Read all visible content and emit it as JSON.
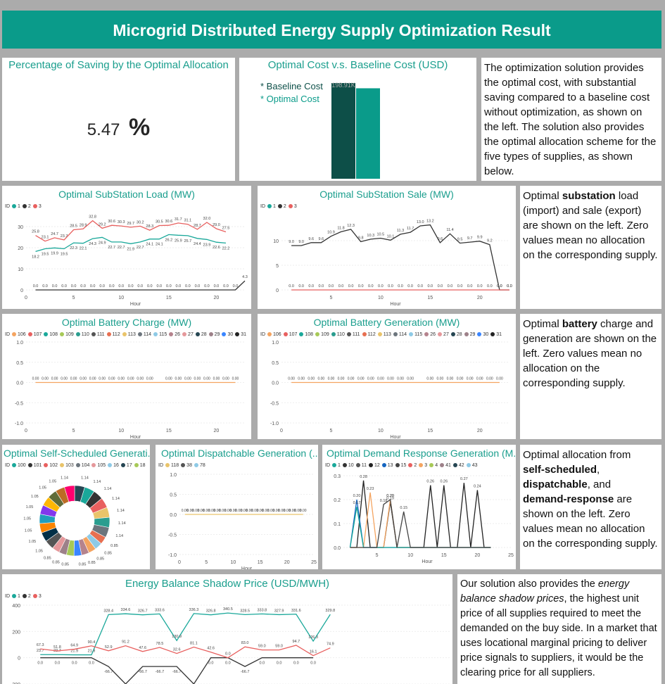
{
  "header": {
    "title": "Microgrid Distributed Energy Supply Optimization Result",
    "accent": "#0a9b8a"
  },
  "saving": {
    "title": "Percentage of Saving by the Optimal Allocation",
    "value": "5.47",
    "unit": "%"
  },
  "cost": {
    "title": "Optimal Cost v.s. Baseline Cost (USD)",
    "legend": [
      "* Baseline Cost",
      "* Optimal Cost"
    ],
    "bar_label": "198.91K",
    "chart_data": {
      "type": "bar",
      "categories": [
        "Baseline Cost",
        "Optimal Cost"
      ],
      "values": [
        198.91,
        188.03
      ],
      "colors": [
        "#0d4f48",
        "#0a9b8a"
      ]
    }
  },
  "note1": {
    "text": "The optimization solution provides the optimal cost, with substantial saving compared to a baseline cost without optimization, as shown on the left. The solution also provides the optimal allocation scheme for the five types of supplies, as shown below."
  },
  "note2": {
    "pre": "Optimal ",
    "bold": "substation",
    "post": " load (import) and sale (export) are shown on the left. Zero values mean no allocation on the corresponding supply."
  },
  "note3": {
    "pre": "Optimal ",
    "bold": "battery",
    "post": " charge and generation are shown on the left. Zero values mean no allocation on the corresponding supply."
  },
  "note4": {
    "l1": "Optimal allocation from",
    "b1": "self-scheduled",
    "b2": "dispatchable",
    "t2": ", and",
    "b3": "demand-response",
    "t3": " are shown on the left. Zero values mean no allocation on the corresponding supply."
  },
  "note5": {
    "t1": "Our solution also provides the ",
    "i1": "energy balance shadow prices",
    "t2": ", the highest unit price of all supplies required to meet the demanded on the buy side. In a market that uses locational marginal pricing to deliver price signals to suppliers, it would be the clearing price for all suppliers."
  },
  "load": {
    "title": "Optimal SubStation Load (MW)",
    "legend_id": "ID",
    "legend": [
      {
        "n": "1",
        "c": "#1aa89a"
      },
      {
        "n": "2",
        "c": "#333333"
      },
      {
        "n": "3",
        "c": "#e8605f"
      }
    ],
    "xlabel": "Hour",
    "yticks": [
      "30",
      "20",
      "10",
      "0"
    ],
    "xticks": [
      "0",
      "5",
      "10",
      "15",
      "20"
    ],
    "chart_data": {
      "type": "line",
      "x": [
        1,
        2,
        3,
        4,
        5,
        6,
        7,
        8,
        9,
        10,
        11,
        12,
        13,
        14,
        15,
        16,
        17,
        18,
        19,
        20,
        21,
        22,
        23
      ],
      "ylim": [
        0,
        35
      ],
      "series": [
        {
          "name": "1",
          "values": [
            18.2,
            19.5,
            19.9,
            19.5,
            22.3,
            22.1,
            24.3,
            24.9,
            22.7,
            22.7,
            21.9,
            22.7,
            24.1,
            24.1,
            26.2,
            25.9,
            25.7,
            24.4,
            23.9,
            22.6,
            22.2,
            null,
            null
          ]
        },
        {
          "name": "2",
          "values": [
            0,
            0,
            0,
            0,
            0,
            0,
            0,
            0,
            0,
            0,
            0,
            0,
            0,
            0,
            0,
            0,
            0,
            0,
            0,
            0,
            0,
            0,
            4.3
          ]
        },
        {
          "name": "3",
          "values": [
            25.8,
            23.1,
            24.7,
            23.7,
            28.5,
            28.9,
            32.8,
            29.2,
            30.6,
            30.3,
            29.7,
            30.2,
            28.3,
            30.5,
            30.6,
            31.7,
            31.1,
            28.7,
            32.0,
            29.0,
            27.5,
            null,
            null
          ]
        }
      ]
    }
  },
  "sale": {
    "title": "Optimal SubStation Sale (MW)",
    "legend_id": "ID",
    "legend": [
      {
        "n": "1",
        "c": "#1aa89a"
      },
      {
        "n": "2",
        "c": "#333333"
      },
      {
        "n": "3",
        "c": "#e8605f"
      }
    ],
    "xlabel": "Hour",
    "yticks": [
      "10",
      "5",
      "0"
    ],
    "xticks": [
      "5",
      "10",
      "15",
      "20"
    ],
    "chart_data": {
      "type": "line",
      "x": [
        1,
        2,
        3,
        4,
        5,
        6,
        7,
        8,
        9,
        10,
        11,
        12,
        13,
        14,
        15,
        16,
        17,
        18,
        19,
        20,
        21,
        22,
        23
      ],
      "ylim": [
        0,
        15
      ],
      "series": [
        {
          "name": "2",
          "values": [
            9.0,
            9.0,
            9.6,
            9.6,
            10.9,
            11.8,
            12.3,
            9.8,
            10.3,
            10.5,
            10.1,
            11.3,
            11.7,
            13.0,
            13.2,
            9.6,
            11.4,
            9.5,
            9.7,
            9.9,
            9.2,
            0,
            0
          ]
        },
        {
          "name": "3",
          "values": [
            0,
            0,
            0,
            0,
            0,
            0,
            0,
            0,
            0,
            0,
            0,
            0,
            0,
            0,
            0,
            0,
            0,
            0,
            0,
            0,
            0,
            0,
            0
          ]
        }
      ]
    }
  },
  "bcharge": {
    "title": "Optimal Battery Charge (MW)",
    "legend_id": "ID",
    "legend": [
      {
        "n": "106",
        "c": "#f4a460"
      },
      {
        "n": "107",
        "c": "#e8605f"
      },
      {
        "n": "108",
        "c": "#1aa89a"
      },
      {
        "n": "109",
        "c": "#a7c957"
      },
      {
        "n": "110",
        "c": "#2a9d8f"
      },
      {
        "n": "111",
        "c": "#555555"
      },
      {
        "n": "112",
        "c": "#e76f51"
      },
      {
        "n": "113",
        "c": "#e9c46a"
      },
      {
        "n": "114",
        "c": "#6c757d"
      },
      {
        "n": "115",
        "c": "#8ecae6"
      },
      {
        "n": "26",
        "c": "#b5838d"
      },
      {
        "n": "27",
        "c": "#e5989b"
      },
      {
        "n": "28",
        "c": "#264653"
      },
      {
        "n": "29",
        "c": "#9d8189"
      },
      {
        "n": "30",
        "c": "#3a86ff"
      },
      {
        "n": "31",
        "c": "#222222"
      }
    ],
    "xlabel": "Hour",
    "yticks": [
      "1.0",
      "0.5",
      "0.0",
      "-0.5",
      "-1.0"
    ],
    "xticks": [
      "0",
      "5",
      "10",
      "15",
      "20"
    ],
    "point_label": "0.00",
    "chart_data": {
      "type": "line",
      "x": [
        1,
        2,
        3,
        4,
        5,
        6,
        7,
        8,
        9,
        10,
        11,
        12,
        13,
        15,
        16,
        17,
        18,
        19,
        20,
        21,
        22
      ],
      "ylim": [
        -1,
        1
      ],
      "series": [
        {
          "name": "106",
          "values": [
            0,
            0,
            0,
            0,
            0,
            0,
            0,
            0,
            0,
            0,
            0,
            0,
            0,
            0,
            0,
            0,
            0,
            0,
            0,
            0,
            0
          ]
        }
      ]
    }
  },
  "bgen": {
    "title": "Optimal Battery Generation (MW)",
    "legend_id": "ID",
    "legend": [
      {
        "n": "106",
        "c": "#f4a460"
      },
      {
        "n": "107",
        "c": "#e8605f"
      },
      {
        "n": "108",
        "c": "#1aa89a"
      },
      {
        "n": "109",
        "c": "#a7c957"
      },
      {
        "n": "110",
        "c": "#2a9d8f"
      },
      {
        "n": "111",
        "c": "#555555"
      },
      {
        "n": "112",
        "c": "#e76f51"
      },
      {
        "n": "113",
        "c": "#e9c46a"
      },
      {
        "n": "114",
        "c": "#6c757d"
      },
      {
        "n": "115",
        "c": "#8ecae6"
      },
      {
        "n": "26",
        "c": "#b5838d"
      },
      {
        "n": "27",
        "c": "#e5989b"
      },
      {
        "n": "28",
        "c": "#264653"
      },
      {
        "n": "29",
        "c": "#9d8189"
      },
      {
        "n": "30",
        "c": "#3a86ff"
      },
      {
        "n": "31",
        "c": "#222222"
      }
    ],
    "xlabel": "Hour",
    "yticks": [
      "1.0",
      "0.5",
      "0.0",
      "-0.5",
      "-1.0"
    ],
    "xticks": [
      "0",
      "5",
      "10",
      "15",
      "20"
    ],
    "point_label": "0.00",
    "chart_data": {
      "type": "line",
      "x": [
        1,
        2,
        3,
        4,
        5,
        6,
        7,
        8,
        9,
        10,
        11,
        12,
        13,
        15,
        16,
        17,
        18,
        19,
        20,
        21,
        22
      ],
      "ylim": [
        -1,
        1
      ],
      "series": [
        {
          "name": "106",
          "values": [
            0,
            0,
            0,
            0,
            0,
            0,
            0,
            0,
            0,
            0,
            0,
            0,
            0,
            0,
            0,
            0,
            0,
            0,
            0,
            0,
            0
          ]
        }
      ]
    }
  },
  "selfsched": {
    "title": "Optimal Self-Scheduled Generati...",
    "legend_id": "ID",
    "legend": [
      {
        "n": "100",
        "c": "#1aa89a"
      },
      {
        "n": "101",
        "c": "#333333"
      },
      {
        "n": "102",
        "c": "#e8605f"
      },
      {
        "n": "103",
        "c": "#e9c46a"
      },
      {
        "n": "104",
        "c": "#6c757d"
      },
      {
        "n": "105",
        "c": "#e5989b"
      },
      {
        "n": "16",
        "c": "#8ecae6"
      },
      {
        "n": "17",
        "c": "#264653"
      },
      {
        "n": "18",
        "c": "#a7c957"
      }
    ],
    "chart_data": {
      "type": "pie",
      "labels": [
        "1.14",
        "1.14",
        "1.14",
        "1.14",
        "1.14",
        "1.14",
        "1.14",
        "0.85",
        "0.85",
        "0.85",
        "0.85",
        "0.85",
        "0.85",
        "0.85",
        "0.85",
        "1.05",
        "1.05",
        "1.05",
        "1.05",
        "1.05",
        "1.05",
        "1.05",
        "1.05",
        "1.14"
      ],
      "values": [
        1.14,
        1.14,
        1.14,
        1.14,
        1.14,
        1.14,
        1.14,
        0.85,
        0.85,
        0.85,
        0.85,
        0.85,
        0.85,
        0.85,
        0.85,
        1.05,
        1.05,
        1.05,
        1.05,
        1.05,
        1.05,
        1.05,
        1.05,
        1.14
      ],
      "colors": [
        "#264653",
        "#1aa89a",
        "#333333",
        "#e8605f",
        "#e9c46a",
        "#2a9d8f",
        "#6c757d",
        "#e76f51",
        "#8ecae6",
        "#f4a460",
        "#b5838d",
        "#3a86ff",
        "#a7c957",
        "#9d8189",
        "#e5989b",
        "#555555",
        "#023047",
        "#fb8500",
        "#219ebc",
        "#8338ec",
        "#ffb703",
        "#606c38",
        "#bc6c25",
        "#ff006e"
      ]
    }
  },
  "dispatch": {
    "title": "Optimal Dispatchable Generation (...",
    "legend_id": "ID",
    "legend": [
      {
        "n": "118",
        "c": "#e9c46a"
      },
      {
        "n": "38",
        "c": "#555555"
      },
      {
        "n": "78",
        "c": "#8ecae6"
      }
    ],
    "xlabel": "Hour",
    "yticks": [
      "1.0",
      "0.5",
      "0.0",
      "-0.5",
      "-1.0"
    ],
    "xticks": [
      "0",
      "5",
      "10",
      "15",
      "20",
      "25"
    ],
    "point_label": "0.00",
    "chart_data": {
      "type": "line",
      "x": [
        1,
        2,
        3,
        4,
        5,
        6,
        7,
        8,
        9,
        10,
        11,
        12,
        13,
        14,
        15,
        16,
        17,
        18,
        19,
        20,
        21,
        22,
        23
      ],
      "ylim": [
        -1,
        1
      ],
      "series": [
        {
          "name": "118",
          "values": [
            0,
            0,
            0,
            0,
            0,
            0,
            0,
            0,
            0,
            0,
            0,
            0,
            0,
            0,
            0,
            0,
            0,
            0,
            0,
            0,
            0,
            0,
            0
          ]
        }
      ]
    }
  },
  "demand": {
    "title": "Optimal Demand Response Generation (M...",
    "legend_id": "ID",
    "legend": [
      {
        "n": "1",
        "c": "#1aa89a"
      },
      {
        "n": "10",
        "c": "#333333"
      },
      {
        "n": "11",
        "c": "#555555"
      },
      {
        "n": "12",
        "c": "#222222"
      },
      {
        "n": "13",
        "c": "#1565c0"
      },
      {
        "n": "15",
        "c": "#444444"
      },
      {
        "n": "2",
        "c": "#e8605f"
      },
      {
        "n": "3",
        "c": "#f4a460"
      },
      {
        "n": "4",
        "c": "#a7c957"
      },
      {
        "n": "41",
        "c": "#9d8189"
      },
      {
        "n": "42",
        "c": "#264653"
      },
      {
        "n": "43",
        "c": "#8ecae6"
      }
    ],
    "xlabel": "Hour",
    "yticks": [
      "0.3",
      "0.2",
      "0.1",
      "0.0"
    ],
    "xticks": [
      "5",
      "10",
      "15",
      "20",
      "25"
    ],
    "chart_data": {
      "type": "line",
      "x": [
        1,
        2,
        3,
        4,
        5,
        6,
        7,
        8,
        9,
        10,
        11,
        12,
        13,
        14,
        15,
        16,
        17,
        18,
        19,
        20,
        21,
        22
      ],
      "ylim": [
        0,
        0.3
      ],
      "series": [
        {
          "name": "12",
          "values": [
            0,
            0,
            0.28,
            0,
            0,
            0,
            0.19,
            0,
            0,
            0,
            0,
            0,
            0.26,
            0,
            0.26,
            0,
            0,
            0.27,
            0,
            0.24,
            0,
            0
          ]
        },
        {
          "name": "13",
          "values": [
            0,
            0.2,
            0,
            0,
            0,
            0,
            0,
            0,
            0,
            0,
            0,
            0,
            0,
            0,
            0,
            0,
            0,
            0,
            0,
            0,
            0,
            0
          ]
        },
        {
          "name": "3",
          "values": [
            0,
            0,
            0,
            0.23,
            0,
            0,
            0.2,
            0,
            0,
            0,
            0,
            0,
            0,
            0,
            0,
            0,
            0,
            0,
            0,
            0,
            0,
            0
          ]
        },
        {
          "name": "1",
          "values": [
            0,
            0.17,
            0,
            0,
            0,
            0,
            0,
            0,
            0,
            0,
            0,
            0,
            0,
            0,
            0,
            0,
            0,
            0,
            0,
            0,
            0,
            0
          ]
        },
        {
          "name": "15",
          "values": [
            0,
            0,
            0,
            0,
            0,
            0.18,
            0.2,
            0,
            0.15,
            0,
            0,
            0,
            0,
            0,
            0,
            0,
            0,
            0,
            0,
            0,
            0,
            0
          ]
        }
      ]
    }
  },
  "shadow": {
    "title": "Energy Balance Shadow Price (USD/MWH)",
    "legend_id": "ID",
    "legend": [
      {
        "n": "1",
        "c": "#1aa89a"
      },
      {
        "n": "2",
        "c": "#333333"
      },
      {
        "n": "3",
        "c": "#e8605f"
      }
    ],
    "yticks": [
      "400",
      "200",
      "0",
      "-200"
    ],
    "chart_data": {
      "type": "line",
      "x": [
        1,
        2,
        3,
        4,
        5,
        6,
        7,
        8,
        9,
        10,
        11,
        12,
        13,
        14,
        15,
        16,
        17,
        18,
        19,
        20,
        21,
        22,
        23,
        24
      ],
      "ylim": [
        -200,
        400
      ],
      "series": [
        {
          "name": "1",
          "values": [
            23.7,
            23.7,
            21.9,
            21.9,
            328.4,
            334.6,
            326.7,
            333.6,
            130.9,
            336.3,
            326.8,
            340.5,
            328.5,
            333.8,
            327.9,
            331.6,
            126.3,
            329.8,
            null,
            null,
            null,
            null,
            null,
            null
          ]
        },
        {
          "name": "2",
          "values": [
            0,
            0,
            0,
            0,
            -66.7,
            -200,
            -66.7,
            -66.7,
            -66.7,
            -200,
            0,
            0,
            -66.7,
            0,
            0,
            0,
            0,
            null,
            null,
            null,
            null,
            null,
            null,
            null
          ]
        },
        {
          "name": "3",
          "values": [
            67.3,
            51.8,
            64.9,
            90.4,
            52.9,
            91.2,
            47.6,
            78.5,
            32.6,
            81.1,
            42.6,
            0,
            83,
            59,
            59,
            94.7,
            16.1,
            74.9,
            null,
            null,
            null,
            null,
            null,
            null
          ]
        }
      ]
    }
  }
}
